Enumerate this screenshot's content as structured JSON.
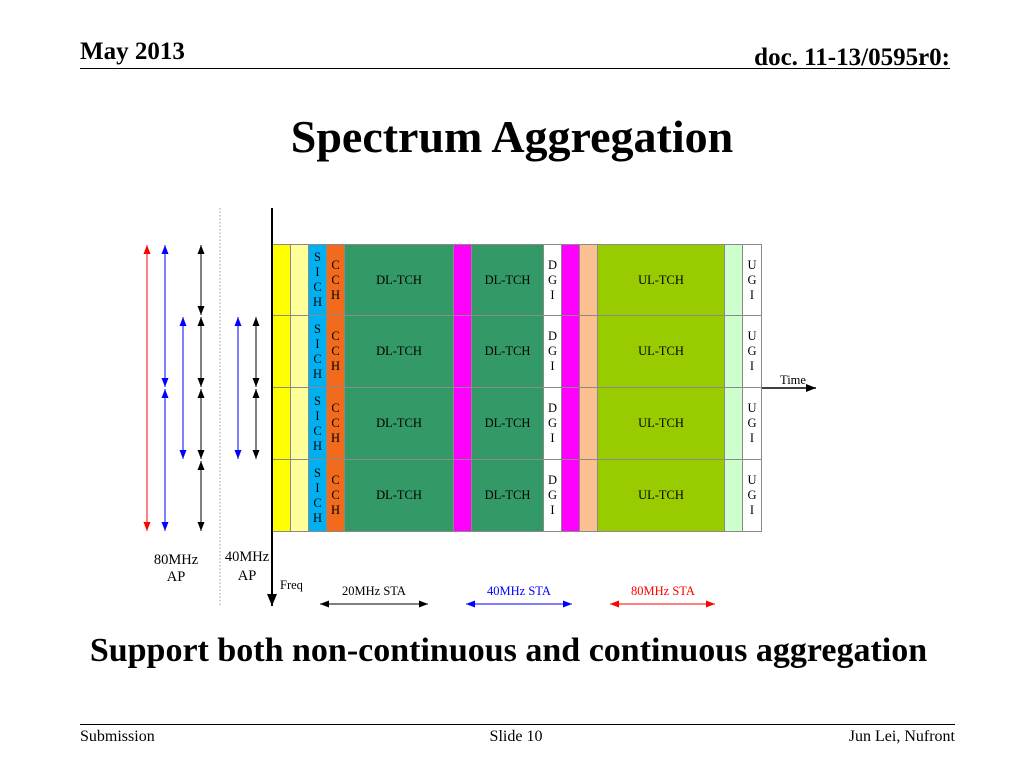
{
  "header": {
    "date": "May 2013",
    "doc_id": "doc. 11-13/0595r0:"
  },
  "title": "Spectrum Aggregation",
  "diagram": {
    "time_label": "Time",
    "freq_label": "Freq",
    "column_colors": [
      "#ffff00",
      "#ffff99",
      "#00b0f0",
      "#f26b1d",
      "#339966",
      "#ff00ff",
      "#339966",
      "#ffffff",
      "#ff00ff",
      "#fac090",
      "#99cc00",
      "#ccffcc",
      "#ffffff"
    ],
    "rows": [
      [
        "",
        "",
        "SICH",
        "CCH",
        "DL-TCH",
        "",
        "DL-TCH",
        "DGI",
        "",
        "",
        "UL-TCH",
        "",
        "UGI"
      ],
      [
        "",
        "",
        "SICH",
        "CCH",
        "DL-TCH",
        "",
        "DL-TCH",
        "DGI",
        "",
        "",
        "UL-TCH",
        "",
        "UGI"
      ],
      [
        "",
        "",
        "SICH",
        "CCH",
        "DL-TCH",
        "",
        "DL-TCH",
        "DGI",
        "",
        "",
        "UL-TCH",
        "",
        "UGI"
      ],
      [
        "",
        "",
        "SICH",
        "CCH",
        "DL-TCH",
        "",
        "DL-TCH",
        "DGI",
        "",
        "",
        "UL-TCH",
        "",
        "UGI"
      ]
    ],
    "ap_labels": [
      {
        "line1": "80MHz",
        "line2": "AP"
      },
      {
        "line1": "40MHz",
        "line2": "AP"
      }
    ],
    "legend": [
      {
        "label": "20MHz STA",
        "color": "#000000"
      },
      {
        "label": "40MHz STA",
        "color": "#0000ff"
      },
      {
        "label": "80MHz STA",
        "color": "#ff0000"
      }
    ]
  },
  "subtitle": "Support both non-continuous and continuous aggregation",
  "footer": {
    "left": "Submission",
    "center": "Slide 10",
    "right": "Jun Lei, Nufront"
  }
}
